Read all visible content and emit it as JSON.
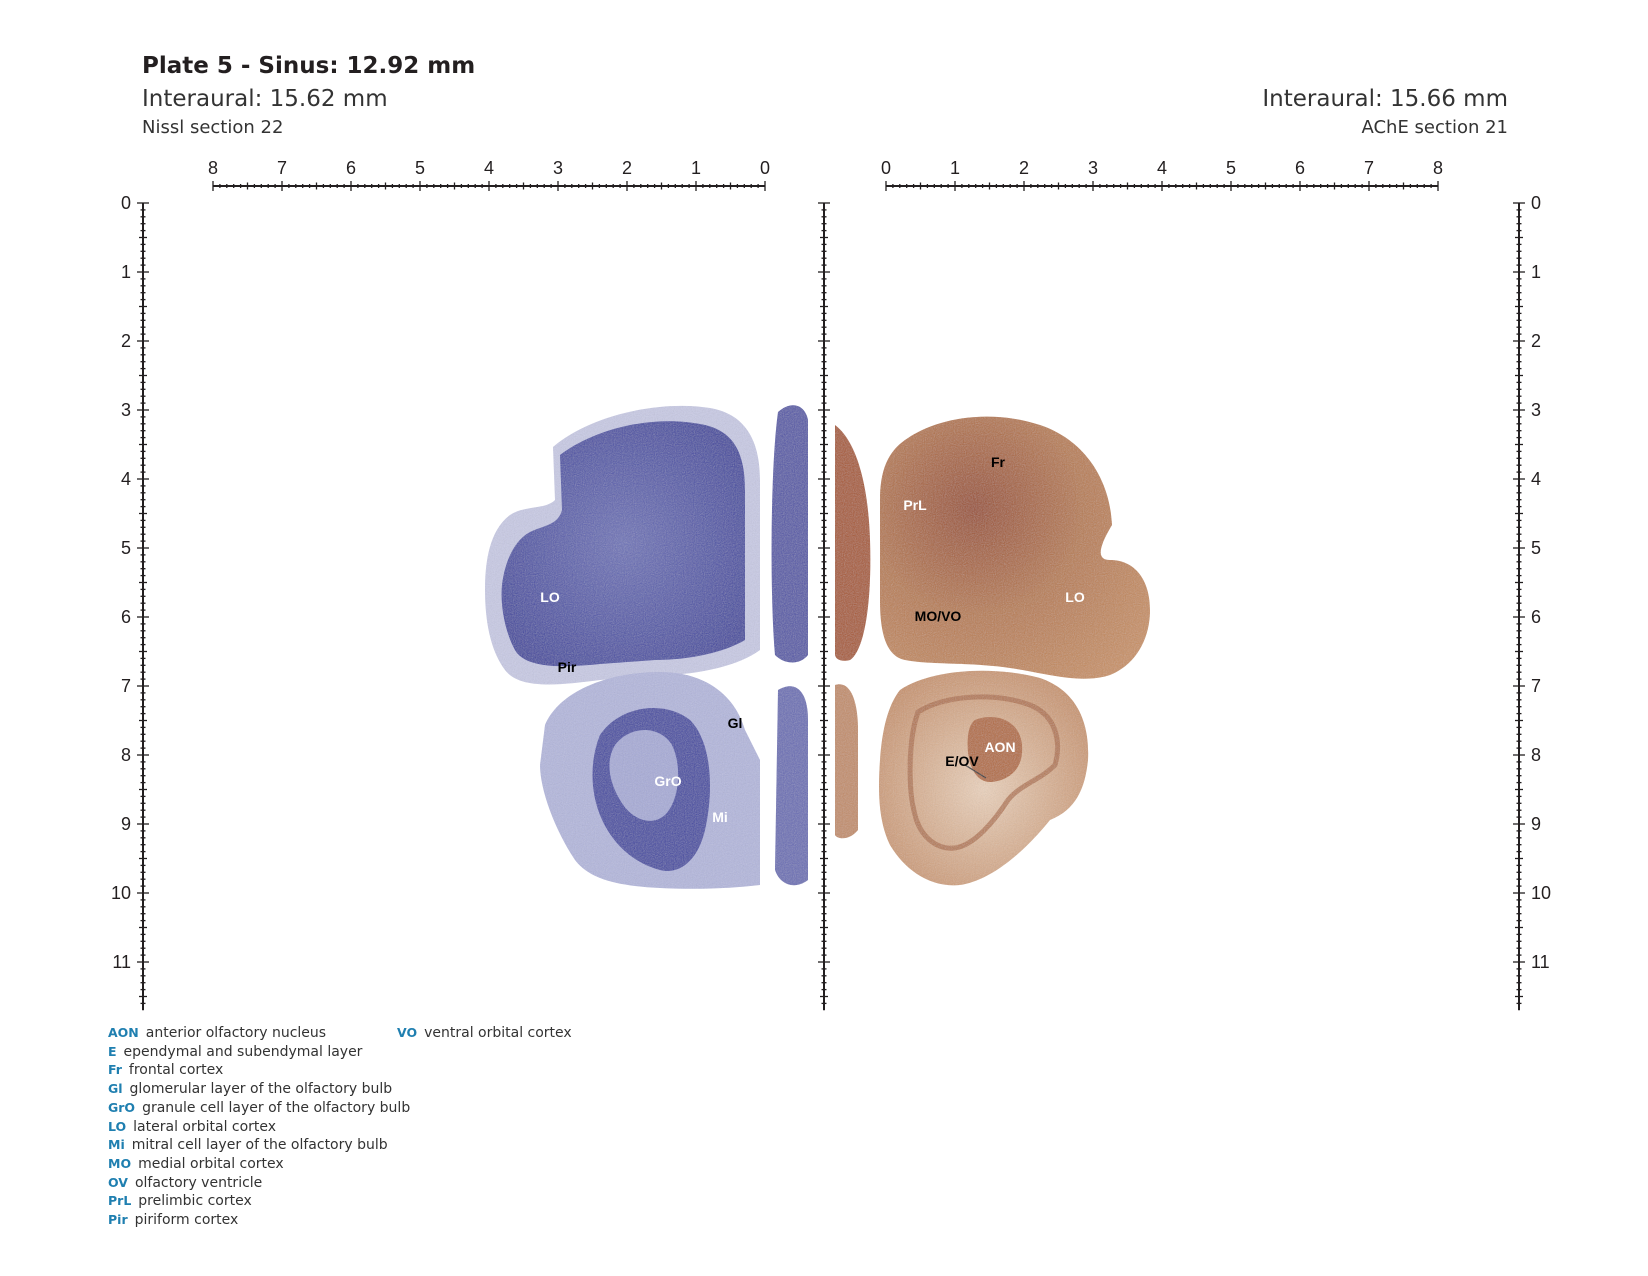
{
  "header": {
    "title": "Plate 5 - Sinus: 12.92 mm",
    "left_interaural": "Interaural: 15.62 mm",
    "left_section": "Nissl section 22",
    "right_interaural": "Interaural: 15.66 mm",
    "right_section": "AChE section 21"
  },
  "axes": {
    "top_left_labels": [
      "8",
      "7",
      "6",
      "5",
      "4",
      "3",
      "2",
      "1",
      "0"
    ],
    "top_right_labels": [
      "0",
      "1",
      "2",
      "3",
      "4",
      "5",
      "6",
      "7",
      "8"
    ],
    "vertical_labels": [
      "0",
      "1",
      "2",
      "3",
      "4",
      "5",
      "6",
      "7",
      "8",
      "9",
      "10",
      "11"
    ]
  },
  "regions": {
    "nissl": [
      {
        "abbr": "LO",
        "color": "#ffffff"
      },
      {
        "abbr": "Pir",
        "color": "#000000"
      },
      {
        "abbr": "Gl",
        "color": "#000000"
      },
      {
        "abbr": "GrO",
        "color": "#ffffff"
      },
      {
        "abbr": "Mi",
        "color": "#ffffff"
      }
    ],
    "ache": [
      {
        "abbr": "Fr",
        "color": "#000000"
      },
      {
        "abbr": "PrL",
        "color": "#ffffff"
      },
      {
        "abbr": "LO",
        "color": "#ffffff"
      },
      {
        "abbr": "MO/VO",
        "color": "#000000"
      },
      {
        "abbr": "AON",
        "color": "#ffffff"
      },
      {
        "abbr": "E/OV",
        "color": "#000000"
      }
    ]
  },
  "stain_colors": {
    "nissl": "#3a3f9e",
    "ache": "#b06a3a"
  },
  "legend": {
    "col1": [
      {
        "abbr": "AON",
        "text": "anterior olfactory nucleus"
      },
      {
        "abbr": "E",
        "text": "ependymal and subendymal layer"
      },
      {
        "abbr": "Fr",
        "text": "frontal cortex"
      },
      {
        "abbr": "Gl",
        "text": "glomerular layer of the olfactory bulb"
      },
      {
        "abbr": "GrO",
        "text": "granule cell layer of the olfactory bulb"
      },
      {
        "abbr": "LO",
        "text": "lateral orbital cortex"
      },
      {
        "abbr": "Mi",
        "text": "mitral cell layer of the olfactory bulb"
      },
      {
        "abbr": "MO",
        "text": "medial orbital cortex"
      },
      {
        "abbr": "OV",
        "text": "olfactory ventricle"
      },
      {
        "abbr": "PrL",
        "text": "prelimbic cortex"
      },
      {
        "abbr": "Pir",
        "text": "piriform cortex"
      }
    ],
    "col2": [
      {
        "abbr": "VO",
        "text": "ventral orbital cortex"
      }
    ]
  }
}
